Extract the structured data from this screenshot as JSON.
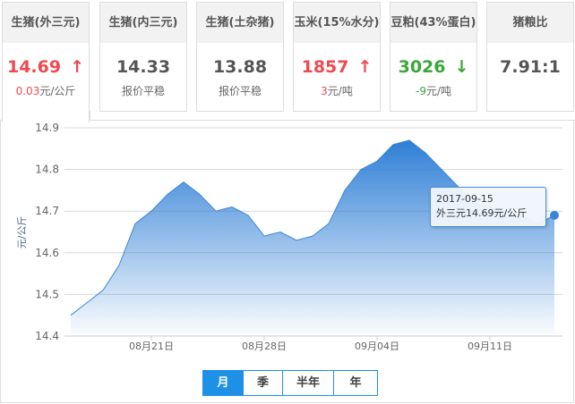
{
  "cards": [
    {
      "title": "生猪(外三元)",
      "value": "14.69",
      "trend": "up",
      "change": "0.03",
      "unit": "元/公斤",
      "color": "#f0494f"
    },
    {
      "title": "生猪(内三元)",
      "value": "14.33",
      "trend": "flat",
      "change": "",
      "unit": "报价平稳",
      "color": "#555555"
    },
    {
      "title": "生猪(土杂猪)",
      "value": "13.88",
      "trend": "flat",
      "change": "",
      "unit": "报价平稳",
      "color": "#555555"
    },
    {
      "title": "玉米(15%水分)",
      "value": "1857",
      "trend": "up",
      "change": "3",
      "unit": "元/吨",
      "color": "#f0494f"
    },
    {
      "title": "豆粕(43%蛋白)",
      "value": "3026",
      "trend": "down",
      "change": "-9",
      "unit": "元/吨",
      "color": "#3aa63a"
    },
    {
      "title": "猪粮比",
      "value": "7.91:1",
      "trend": "none",
      "change": "",
      "unit": "",
      "color": "#555555"
    }
  ],
  "tooltip": {
    "date": "2017-09-15",
    "text": "外三元14.69元/公斤"
  },
  "range_buttons": [
    {
      "label": "月",
      "active": true
    },
    {
      "label": "季"
    },
    {
      "label": "半年"
    },
    {
      "label": "年"
    }
  ],
  "chart_data": {
    "type": "area",
    "ylabel": "元/公斤",
    "ylim": [
      14.4,
      14.9
    ],
    "yticks": [
      "14.4",
      "14.5",
      "14.6",
      "14.7",
      "14.8",
      "14.9"
    ],
    "xticks": [
      {
        "label": "08月21日",
        "date": "08-21"
      },
      {
        "label": "08月28日",
        "date": "08-28"
      },
      {
        "label": "09月04日",
        "date": "09-04"
      },
      {
        "label": "09月11日",
        "date": "09-11"
      }
    ],
    "grid": true,
    "color": "#3a85d8",
    "x": [
      "08-16",
      "08-17",
      "08-18",
      "08-19",
      "08-20",
      "08-21",
      "08-22",
      "08-23",
      "08-24",
      "08-25",
      "08-26",
      "08-27",
      "08-28",
      "08-29",
      "08-30",
      "08-31",
      "09-01",
      "09-02",
      "09-03",
      "09-04",
      "09-05",
      "09-06",
      "09-07",
      "09-08",
      "09-09",
      "09-10",
      "09-11",
      "09-12",
      "09-13",
      "09-14",
      "09-15"
    ],
    "values": [
      14.45,
      14.48,
      14.51,
      14.57,
      14.67,
      14.7,
      14.74,
      14.77,
      14.74,
      14.7,
      14.71,
      14.69,
      14.64,
      14.65,
      14.63,
      14.64,
      14.67,
      14.75,
      14.8,
      14.82,
      14.86,
      14.87,
      14.84,
      14.8,
      14.76,
      14.72,
      14.71,
      14.7,
      14.69,
      14.67,
      14.69
    ]
  }
}
